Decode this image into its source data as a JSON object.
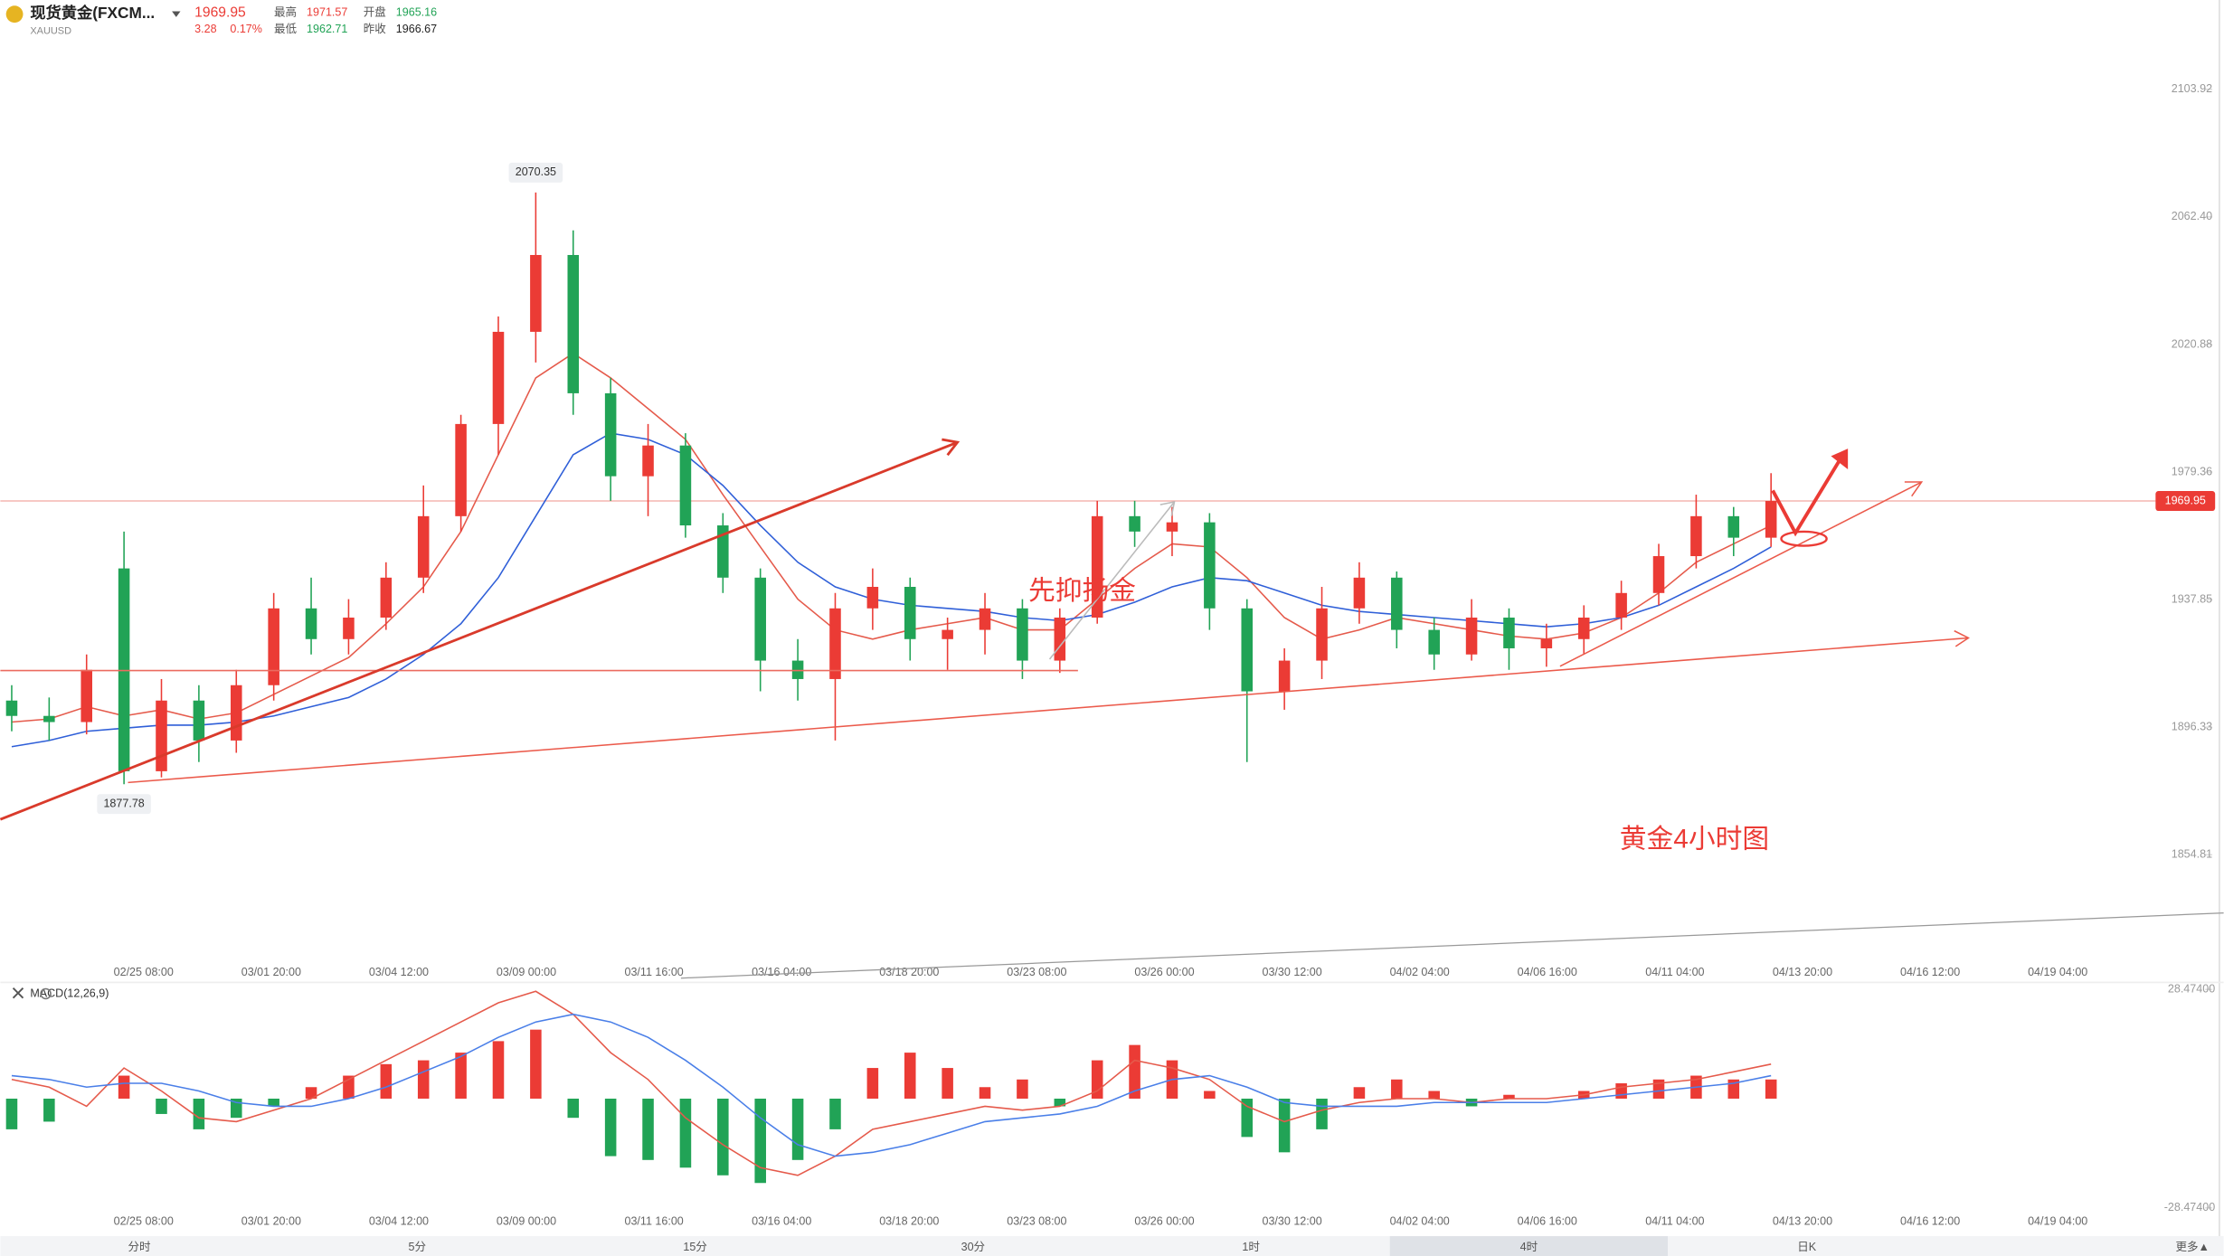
{
  "header": {
    "name": "现货黄金(FXCM...",
    "symbol": "XAUUSD",
    "price_change": "3.28",
    "percent_change": "0.17%",
    "stats": [
      {
        "label": "最高",
        "value": "1971.57"
      },
      {
        "label": "最低",
        "value": "1962.71"
      },
      {
        "label": "开盘",
        "value": "1965.16"
      },
      {
        "label": "昨收",
        "value": "1966.67"
      }
    ]
  },
  "chart_data": {
    "type": "candlestick",
    "annotations": [
      "先抑扬金",
      "黄金4小时图"
    ],
    "x_labels": [
      "02/25 08:00",
      "03/01 20:00",
      "03/04 12:00",
      "03/09 00:00",
      "03/11 16:00",
      "03/16 04:00",
      "03/18 20:00",
      "03/23 08:00",
      "03/26 00:00",
      "03/30 12:00",
      "04/02 04:00",
      "04/06 16:00",
      "04/11 04:00",
      "04/13 20:00",
      "04/16 12:00",
      "04/19 04:00"
    ],
    "open": [
      1905,
      1900,
      1898,
      1948,
      1882,
      1905,
      1892,
      1910,
      1935,
      1925,
      1932,
      1945,
      1965,
      1995,
      2025,
      2050,
      2005,
      1978,
      1988,
      1962,
      1945,
      1918,
      1912,
      1935,
      1942,
      1925,
      1928,
      1935,
      1918,
      1932,
      1965,
      1960,
      1963,
      1935,
      1908,
      1918,
      1935,
      1945,
      1928,
      1920,
      1932,
      1922,
      1925,
      1932,
      1940,
      1952,
      1965,
      1958
    ],
    "high": [
      1910,
      1906,
      1920,
      1960,
      1912,
      1910,
      1915,
      1940,
      1945,
      1938,
      1950,
      1975,
      1998,
      2030,
      2070.35,
      2058,
      2010,
      1995,
      1992,
      1966,
      1948,
      1925,
      1940,
      1948,
      1945,
      1932,
      1940,
      1938,
      1935,
      1970,
      1970,
      1968,
      1966,
      1938,
      1922,
      1942,
      1950,
      1947,
      1932,
      1938,
      1935,
      1930,
      1936,
      1944,
      1956,
      1972,
      1968,
      1979
    ],
    "low": [
      1895,
      1892,
      1894,
      1877.78,
      1880,
      1885,
      1888,
      1905,
      1920,
      1920,
      1928,
      1940,
      1960,
      1985,
      2015,
      1998,
      1970,
      1965,
      1958,
      1940,
      1908,
      1905,
      1892,
      1928,
      1918,
      1915,
      1920,
      1912,
      1914,
      1930,
      1955,
      1952,
      1928,
      1885,
      1902,
      1912,
      1930,
      1922,
      1915,
      1918,
      1915,
      1916,
      1920,
      1928,
      1936,
      1948,
      1952,
      1955
    ],
    "close": [
      1900,
      1898,
      1915,
      1882,
      1905,
      1892,
      1910,
      1935,
      1925,
      1932,
      1945,
      1965,
      1995,
      2025,
      2050,
      2005,
      1978,
      1988,
      1962,
      1945,
      1918,
      1912,
      1935,
      1942,
      1925,
      1928,
      1935,
      1918,
      1932,
      1965,
      1960,
      1963,
      1935,
      1908,
      1918,
      1935,
      1945,
      1928,
      1920,
      1932,
      1922,
      1925,
      1932,
      1940,
      1952,
      1965,
      1958,
      1969.95
    ],
    "up_color": "#eb3b35",
    "down_color": "#21a356",
    "ylim": [
      1820.2,
      2132.98
    ],
    "yticks": [
      2103.92,
      {
        "value": 2062.4,
        "label": "2062.40"
      },
      2020.88,
      1979.36,
      1937.85,
      1896.33,
      1854.81
    ],
    "lines": [
      {
        "color": "#e55a4b",
        "values": [
          1898,
          1899,
          1903,
          1900,
          1902,
          1899,
          1901,
          1907,
          1913,
          1919,
          1930,
          1942,
          1960,
          1985,
          2010,
          2018,
          2010,
          2000,
          1990,
          1972,
          1955,
          1938,
          1928,
          1925,
          1928,
          1930,
          1932,
          1928,
          1928,
          1938,
          1948,
          1956,
          1955,
          1945,
          1932,
          1925,
          1928,
          1932,
          1930,
          1928,
          1926,
          1925,
          1927,
          1932,
          1940,
          1950,
          1956,
          1962
        ]
      },
      {
        "color": "#2f5fd8",
        "values": [
          1890,
          1892,
          1895,
          1896,
          1897,
          1897,
          1898,
          1900,
          1903,
          1906,
          1912,
          1920,
          1930,
          1945,
          1965,
          1985,
          1992,
          1990,
          1985,
          1975,
          1962,
          1950,
          1942,
          1938,
          1936,
          1935,
          1934,
          1932,
          1931,
          1933,
          1937,
          1942,
          1945,
          1944,
          1940,
          1936,
          1934,
          1933,
          1932,
          1931,
          1930,
          1929,
          1930,
          1932,
          1936,
          1942,
          1948,
          1955
        ]
      }
    ],
    "macd": {
      "title": "MACD(12,26,9)",
      "ylim": [
        -28.474,
        28.474
      ],
      "yticks": [
        {
          "value": 28.474,
          "label": "28.47400"
        },
        {
          "value": -28.474,
          "label": "-28.47400"
        }
      ],
      "histogram": [
        -8,
        -6,
        0,
        6,
        -4,
        -8,
        -5,
        -2,
        3,
        6,
        9,
        10,
        12,
        15,
        18,
        -5,
        -15,
        -16,
        -18,
        -20,
        -22,
        -16,
        -8,
        8,
        12,
        8,
        3,
        5,
        -2,
        10,
        14,
        10,
        2,
        -10,
        -14,
        -8,
        3,
        5,
        2,
        -2,
        1,
        0,
        2,
        4,
        5,
        6,
        5,
        5
      ],
      "dif": {
        "color": "#e55a4b",
        "values": [
          5,
          3,
          -2,
          8,
          2,
          -5,
          -6,
          -3,
          0,
          5,
          10,
          15,
          20,
          25,
          28,
          22,
          12,
          5,
          -5,
          -12,
          -18,
          -20,
          -15,
          -8,
          -6,
          -4,
          -2,
          -3,
          -2,
          2,
          10,
          8,
          5,
          -2,
          -6,
          -3,
          -1,
          0,
          0,
          -1,
          0,
          0,
          1,
          3,
          4,
          5,
          7,
          9
        ]
      },
      "dea": {
        "color": "#4a7fe8",
        "values": [
          6,
          5,
          3,
          4,
          4,
          2,
          -1,
          -2,
          -2,
          0,
          3,
          7,
          11,
          16,
          20,
          22,
          20,
          16,
          10,
          3,
          -5,
          -12,
          -15,
          -14,
          -12,
          -9,
          -6,
          -5,
          -4,
          -2,
          2,
          5,
          6,
          3,
          -1,
          -2,
          -2,
          -2,
          -1,
          -1,
          -1,
          -1,
          0,
          1,
          2,
          3,
          4,
          6
        ]
      }
    }
  },
  "tabs": [
    "分时",
    "5分",
    "15分",
    "30分",
    "1时",
    "4时",
    "日K",
    "更多▲"
  ],
  "selected_tab": 5
}
